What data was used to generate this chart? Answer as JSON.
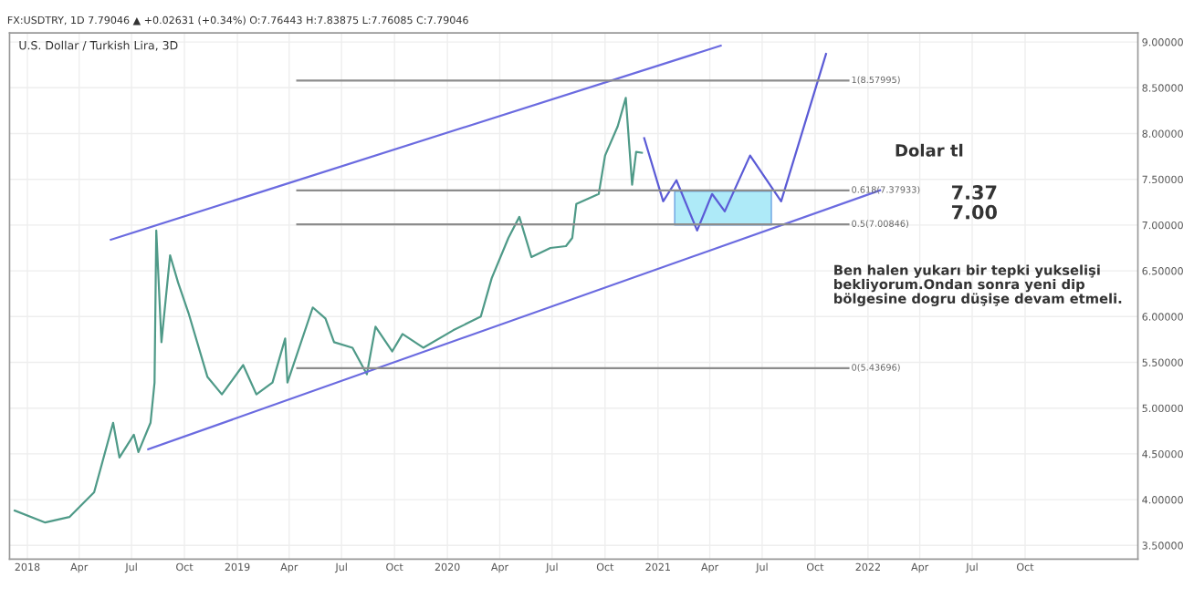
{
  "chart_data": {
    "type": "line",
    "title": "U.S. Dollar / Turkish Lira, 3D",
    "subtitle": "FX:USDTRY, 1D 7.79046 ▲ +0.02631 (+0.34%) O:7.76443 H:7.83875 L:7.76085 C:7.79046",
    "series": [
      {
        "color": "#4f9a88",
        "x": [
          "2017-12-10",
          "2018-02-01",
          "2018-03-15",
          "2018-04-27",
          "2018-05-30",
          "2018-06-10",
          "2018-07-05",
          "2018-07-13",
          "2018-08-03",
          "2018-08-10",
          "2018-08-13",
          "2018-08-22",
          "2018-09-06",
          "2018-09-20",
          "2018-10-08",
          "2018-11-10",
          "2018-12-05",
          "2019-01-11",
          "2019-02-03",
          "2019-03-03",
          "2019-03-25",
          "2019-03-29",
          "2019-05-12",
          "2019-06-03",
          "2019-06-18",
          "2019-07-20",
          "2019-08-14",
          "2019-08-29",
          "2019-09-27",
          "2019-10-15",
          "2019-11-20",
          "2020-01-11",
          "2020-02-28",
          "2020-03-18",
          "2020-04-16",
          "2020-05-05",
          "2020-05-26",
          "2020-06-28",
          "2020-07-25",
          "2020-08-05",
          "2020-08-12",
          "2020-09-20",
          "2020-10-01",
          "2020-10-23",
          "2020-11-06",
          "2020-11-17",
          "2020-11-24",
          "2020-12-04"
        ],
        "values": [
          3.88,
          3.75,
          3.81,
          4.08,
          4.84,
          4.46,
          4.71,
          4.52,
          4.84,
          5.28,
          6.94,
          5.72,
          6.67,
          6.37,
          6.04,
          5.34,
          5.15,
          5.47,
          5.15,
          5.28,
          5.76,
          5.28,
          6.1,
          5.98,
          5.72,
          5.66,
          5.37,
          5.89,
          5.62,
          5.81,
          5.66,
          5.85,
          6.0,
          6.42,
          6.86,
          7.09,
          6.65,
          6.75,
          6.77,
          6.86,
          7.23,
          7.34,
          7.76,
          8.08,
          8.39,
          7.44,
          7.8,
          7.79
        ]
      },
      {
        "color": "#6b6be0",
        "x": [
          "2018-05-26",
          "2021-04-20"
        ],
        "values": [
          6.84,
          8.96
        ]
      },
      {
        "type": "line",
        "color": "#6b6be0",
        "x": [
          "2018-07-30",
          "2022-01-22"
        ],
        "values": [
          4.55,
          7.38
        ]
      },
      {
        "type": "line",
        "color": "#5b5bd6",
        "x": [
          "2020-12-08",
          "2021-01-10",
          "2021-02-02",
          "2021-03-10",
          "2021-04-05",
          "2021-04-27",
          "2021-06-10",
          "2021-08-03",
          "2021-10-20"
        ],
        "values": [
          7.95,
          7.26,
          7.49,
          6.94,
          7.34,
          7.15,
          7.76,
          7.26,
          8.87
        ]
      },
      {
        "type": "line",
        "color": "#8c8c8c",
        "name": "1(8.57995)",
        "x": [
          "2019-04-15",
          "2021-11-28"
        ],
        "values": [
          8.57995,
          8.57995
        ]
      },
      {
        "type": "line",
        "color": "#8c8c8c",
        "name": "0.618(7.37933)",
        "x": [
          "2019-04-15",
          "2021-11-28"
        ],
        "values": [
          7.37933,
          7.37933
        ]
      },
      {
        "type": "line",
        "color": "#8c8c8c",
        "name": "0.5(7.00846)",
        "x": [
          "2019-04-15",
          "2021-11-28"
        ],
        "values": [
          7.00846,
          7.00846
        ]
      },
      {
        "type": "line",
        "color": "#8c8c8c",
        "name": "0(5.43696)",
        "x": [
          "2019-04-15",
          "2021-11-28"
        ],
        "values": [
          5.43696,
          5.43696
        ]
      },
      {
        "type": "line",
        "color": "#aeeaf8",
        "x": [
          "2021-01-30",
          "2021-07-17"
        ],
        "values": [
          null,
          null
        ],
        "lower": [
          7.0,
          7.0
        ],
        "upper": [
          7.37,
          7.37
        ]
      }
    ],
    "annotations": [
      "Dolar tl",
      "7.37\n7.00",
      "Ben halen yukarı bir tepki yukselişi\nbekliyorum.Ondan sonra yeni dip\nbölgesine dogru düşişe devam etmeli."
    ],
    "xlim": [
      "2017-12-01",
      "2023-04-15"
    ],
    "xticks": [
      {
        "value": "2018-01-01",
        "label": "2018"
      },
      {
        "value": "2018-04-01",
        "label": "Apr"
      },
      {
        "value": "2018-07-01",
        "label": "Jul"
      },
      {
        "value": "2018-10-01",
        "label": "Oct"
      },
      {
        "value": "2019-01-01",
        "label": "2019"
      },
      {
        "value": "2019-04-01",
        "label": "Apr"
      },
      {
        "value": "2019-07-01",
        "label": "Jul"
      },
      {
        "value": "2019-10-01",
        "label": "Oct"
      },
      {
        "value": "2020-01-01",
        "label": "2020"
      },
      {
        "value": "2020-04-01",
        "label": "Apr"
      },
      {
        "value": "2020-07-01",
        "label": "Jul"
      },
      {
        "value": "2020-10-01",
        "label": "Oct"
      },
      {
        "value": "2021-01-01",
        "label": "2021"
      },
      {
        "value": "2021-04-01",
        "label": "Apr"
      },
      {
        "value": "2021-07-01",
        "label": "Jul"
      },
      {
        "value": "2021-10-01",
        "label": "Oct"
      },
      {
        "value": "2022-01-01",
        "label": "2022"
      },
      {
        "value": "2022-04-01",
        "label": "Apr"
      },
      {
        "value": "2022-07-01",
        "label": "Jul"
      },
      {
        "value": "2022-10-01",
        "label": "Oct"
      }
    ],
    "ylim": [
      3.35,
      9.1
    ],
    "yticks": [
      {
        "value": 3.5,
        "label": "3.50000"
      },
      {
        "value": 4.0,
        "label": "4.00000"
      },
      {
        "value": 4.5,
        "label": "4.50000"
      },
      {
        "value": 5.0,
        "label": "5.00000"
      },
      {
        "value": 5.5,
        "label": "5.50000"
      },
      {
        "value": 6.0,
        "label": "6.00000"
      },
      {
        "value": 6.5,
        "label": "6.50000"
      },
      {
        "value": 7.0,
        "label": "7.00000"
      },
      {
        "value": 7.5,
        "label": "7.50000"
      },
      {
        "value": 8.0,
        "label": "8.00000"
      },
      {
        "value": 8.5,
        "label": "8.50000"
      },
      {
        "value": 9.0,
        "label": "9.00000"
      }
    ],
    "grid": true,
    "legend": false
  }
}
